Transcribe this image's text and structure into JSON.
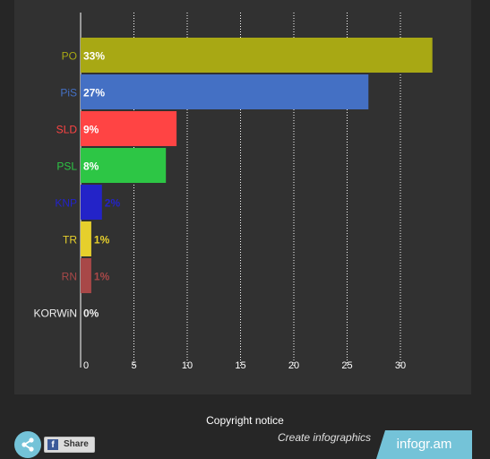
{
  "chart_data": {
    "type": "bar",
    "orientation": "horizontal",
    "categories": [
      "PO",
      "PiS",
      "SLD",
      "PSL",
      "KNP",
      "TR",
      "RN",
      "KORWiN"
    ],
    "values": [
      33,
      27,
      9,
      8,
      2,
      1,
      1,
      0
    ],
    "data_labels": [
      "33%",
      "27%",
      "9%",
      "8%",
      "2%",
      "1%",
      "1%",
      "0%"
    ],
    "colors": [
      "#a8a814",
      "#4470c4",
      "#ff4444",
      "#2dc645",
      "#2323c8",
      "#e6cf2c",
      "#a84848",
      "#eeeeee"
    ],
    "x_ticks": [
      0,
      5,
      10,
      15,
      20,
      25,
      30
    ],
    "xlim": [
      0,
      33
    ],
    "grid": true,
    "title": "",
    "xlabel": "",
    "ylabel": ""
  },
  "footer": {
    "copyright": "Copyright notice",
    "create_link": "Create infographics",
    "brand": "infogr.am",
    "share_label": "Share",
    "fb_glyph": "f"
  },
  "icons": {
    "share": "share-icon",
    "facebook": "facebook-icon"
  },
  "colors": {
    "panel_bg": "#313131",
    "page_bg": "#262626",
    "brand": "#74c3d8"
  }
}
